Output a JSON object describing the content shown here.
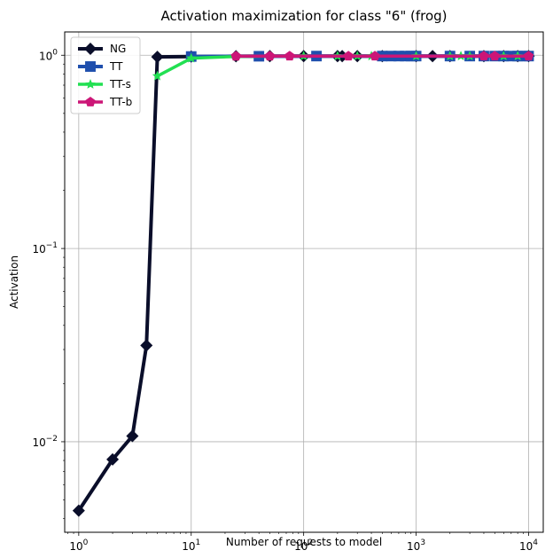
{
  "chart_data": {
    "type": "line",
    "title": "Activation maximization for class \"6\" (frog)",
    "xlabel": "Number of requests to model",
    "ylabel": "Activation",
    "xscale": "log",
    "yscale": "log",
    "xlim": [
      0.75,
      13500
    ],
    "ylim": [
      0.0034,
      1.32
    ],
    "grid": true,
    "legend_position": "top-left",
    "xticks": [
      {
        "value": 1,
        "base": "10",
        "exp": "0"
      },
      {
        "value": 10,
        "base": "10",
        "exp": "1"
      },
      {
        "value": 100,
        "base": "10",
        "exp": "2"
      },
      {
        "value": 1000,
        "base": "10",
        "exp": "3"
      },
      {
        "value": 10000,
        "base": "10",
        "exp": "4"
      }
    ],
    "yticks": [
      {
        "value": 0.01,
        "base": "10",
        "exp": "−2"
      },
      {
        "value": 0.1,
        "base": "10",
        "exp": "−1"
      },
      {
        "value": 1,
        "base": "10",
        "exp": "0"
      }
    ],
    "series": [
      {
        "name": "NG",
        "color": "#0a0e2a",
        "marker": "diamond",
        "x": [
          1,
          2,
          3,
          4,
          5,
          10,
          25,
          50,
          100,
          200,
          220,
          300,
          500,
          1000,
          1400,
          2000,
          4000,
          6000,
          8000,
          10000
        ],
        "y": [
          0.0044,
          0.0081,
          0.0107,
          0.0315,
          0.98,
          0.985,
          0.988,
          0.99,
          0.99,
          0.99,
          0.99,
          0.99,
          0.99,
          0.99,
          0.99,
          0.99,
          0.99,
          0.99,
          0.99,
          0.99
        ]
      },
      {
        "name": "TT",
        "color": "#1f4fad",
        "marker": "square",
        "x": [
          10,
          40,
          130,
          500,
          600,
          700,
          800,
          900,
          1000,
          2000,
          3000,
          4000,
          5000,
          6000,
          7000,
          8000,
          9000,
          10000
        ],
        "y": [
          0.985,
          0.988,
          0.99,
          0.99,
          0.99,
          0.99,
          0.99,
          0.99,
          0.99,
          0.99,
          0.99,
          0.99,
          0.99,
          0.99,
          0.99,
          0.99,
          0.99,
          0.99
        ]
      },
      {
        "name": "TT-s",
        "color": "#22e052",
        "marker": "star",
        "x": [
          5,
          10,
          25,
          50,
          100,
          200,
          300,
          400,
          1000,
          2000,
          2500,
          3000,
          4000,
          5000,
          6000,
          8000,
          10000
        ],
        "y": [
          0.78,
          0.965,
          0.985,
          0.99,
          0.99,
          0.99,
          0.99,
          0.99,
          0.99,
          0.99,
          0.99,
          0.99,
          0.99,
          0.99,
          0.99,
          0.99,
          0.99
        ]
      },
      {
        "name": "TT-b",
        "color": "#cc1677",
        "marker": "pentagon",
        "x": [
          25,
          50,
          75,
          250,
          430,
          4000,
          5000,
          10000
        ],
        "y": [
          0.988,
          0.99,
          0.99,
          0.99,
          0.99,
          0.99,
          0.99,
          0.99
        ]
      }
    ]
  }
}
